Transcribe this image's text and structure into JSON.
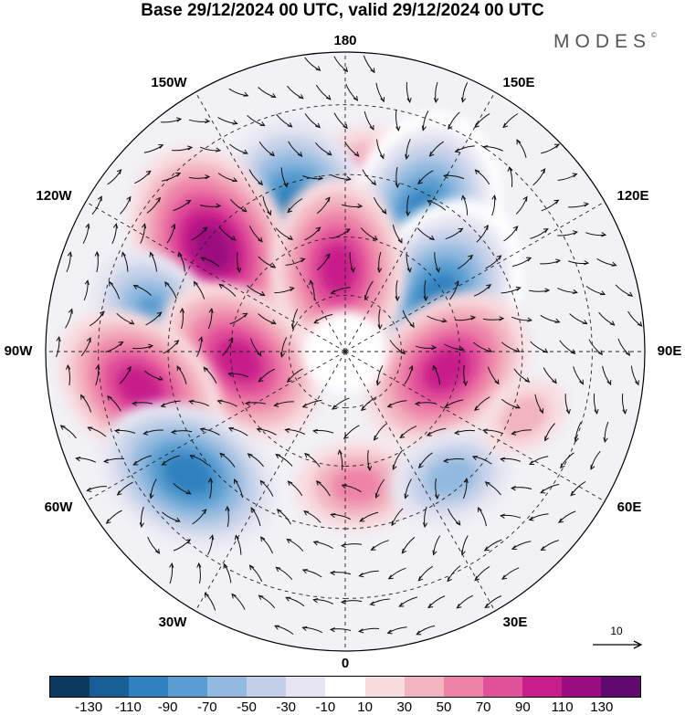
{
  "header": {
    "title": "Base 29/12/2024 00 UTC, valid 29/12/2024 00 UTC",
    "brand": "MODES"
  },
  "map": {
    "projection": "north-polar-stereographic",
    "longitude_labels": {
      "lon_0": "0",
      "lon_30e": "30E",
      "lon_60e": "60E",
      "lon_90e": "90E",
      "lon_120e": "120E",
      "lon_150e": "150E",
      "lon_180": "180",
      "lon_150w": "150W",
      "lon_120w": "120W",
      "lon_90w": "90W",
      "lon_60w": "60W",
      "lon_30w": "30W"
    },
    "anomaly_centers": [
      {
        "lon": 170,
        "lat": 62,
        "value": 130,
        "color_class": "positive"
      },
      {
        "lon": -160,
        "lat": 55,
        "value": -120,
        "color_class": "negative"
      },
      {
        "lon": -128,
        "lat": 47,
        "value": 110,
        "color_class": "positive"
      },
      {
        "lon": 150,
        "lat": 50,
        "value": -110,
        "color_class": "negative"
      },
      {
        "lon": 120,
        "lat": 62,
        "value": -110,
        "color_class": "negative"
      },
      {
        "lon": -175,
        "lat": 68,
        "value": 100,
        "color_class": "positive"
      },
      {
        "lon": 80,
        "lat": 63,
        "value": 90,
        "color_class": "positive"
      },
      {
        "lon": -100,
        "lat": 42,
        "value": -80,
        "color_class": "negative"
      },
      {
        "lon": -85,
        "lat": 62,
        "value": 90,
        "color_class": "positive"
      },
      {
        "lon": -80,
        "lat": 38,
        "value": 90,
        "color_class": "positive"
      },
      {
        "lon": -52,
        "lat": 40,
        "value": -100,
        "color_class": "negative"
      },
      {
        "lon": 5,
        "lat": 55,
        "value": 50,
        "color_class": "positive"
      },
      {
        "lon": 40,
        "lat": 48,
        "value": -60,
        "color_class": "negative"
      },
      {
        "lon": 70,
        "lat": 42,
        "value": 40,
        "color_class": "positive"
      }
    ]
  },
  "colorbar": {
    "colors": [
      "#0b3a5e",
      "#175f95",
      "#2e80be",
      "#5a9dd0",
      "#92b9df",
      "#c4d0e8",
      "#e6e6f2",
      "#ffffff",
      "#f8dde0",
      "#f2b4bf",
      "#ee83a8",
      "#e1519a",
      "#c71e8a",
      "#9b0d7f",
      "#5e0a6f"
    ],
    "ticks": [
      "-130",
      "-110",
      "-90",
      "-70",
      "-50",
      "-30",
      "-10",
      "10",
      "30",
      "50",
      "70",
      "90",
      "110",
      "130"
    ]
  },
  "reference_vector": {
    "label": "10"
  }
}
